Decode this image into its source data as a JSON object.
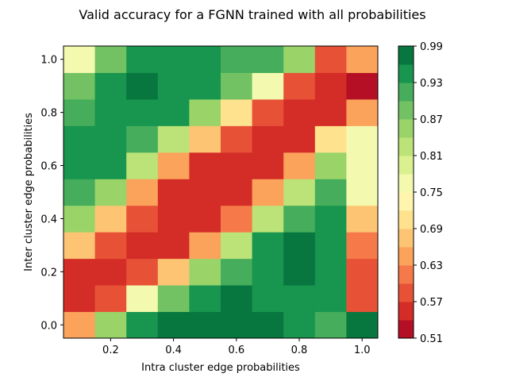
{
  "chart_data": {
    "type": "heatmap",
    "title": "Valid accuracy for a FGNN trained with all probabilities",
    "xlabel": "Intra cluster edge probabilities",
    "ylabel": "Inter cluster edge probabilities",
    "x_ticks": [
      "0.2",
      "0.4",
      "0.6",
      "0.8",
      "1.0"
    ],
    "y_ticks": [
      "0.0",
      "0.2",
      "0.4",
      "0.6",
      "0.8",
      "1.0"
    ],
    "x_tick_values": [
      0.2,
      0.4,
      0.6,
      0.8,
      1.0
    ],
    "y_tick_values": [
      0.0,
      0.2,
      0.4,
      0.6,
      0.8,
      1.0
    ],
    "x_centers": [
      0.1,
      0.2,
      0.3,
      0.4,
      0.5,
      0.6,
      0.7,
      0.8,
      0.9,
      1.0
    ],
    "y_centers": [
      0.0,
      0.1,
      0.2,
      0.3,
      0.4,
      0.5,
      0.6,
      0.7,
      0.8,
      0.9,
      1.0
    ],
    "xlim": [
      0.05,
      1.05
    ],
    "ylim": [
      -0.05,
      1.05
    ],
    "colorbar": {
      "colormap": "RdYlGn",
      "vmin": 0.51,
      "vmax": 0.99,
      "levels": 16,
      "ticks": [
        "0.51",
        "0.57",
        "0.63",
        "0.69",
        "0.75",
        "0.81",
        "0.87",
        "0.93",
        "0.99"
      ],
      "tick_values": [
        0.51,
        0.57,
        0.63,
        0.69,
        0.75,
        0.81,
        0.87,
        0.93,
        0.99
      ]
    },
    "values": [
      [
        0.65,
        0.85,
        0.94,
        0.98,
        0.98,
        0.98,
        0.98,
        0.94,
        0.91,
        0.98
      ],
      [
        0.55,
        0.58,
        0.76,
        0.87,
        0.94,
        0.98,
        0.94,
        0.94,
        0.94,
        0.58
      ],
      [
        0.55,
        0.55,
        0.58,
        0.69,
        0.85,
        0.91,
        0.94,
        0.98,
        0.94,
        0.58
      ],
      [
        0.69,
        0.58,
        0.55,
        0.55,
        0.65,
        0.82,
        0.94,
        0.98,
        0.94,
        0.61
      ],
      [
        0.85,
        0.69,
        0.58,
        0.55,
        0.55,
        0.61,
        0.82,
        0.91,
        0.94,
        0.69
      ],
      [
        0.91,
        0.85,
        0.65,
        0.55,
        0.55,
        0.55,
        0.65,
        0.82,
        0.91,
        0.76
      ],
      [
        0.94,
        0.94,
        0.82,
        0.65,
        0.55,
        0.55,
        0.55,
        0.65,
        0.85,
        0.76
      ],
      [
        0.94,
        0.94,
        0.91,
        0.82,
        0.69,
        0.58,
        0.55,
        0.55,
        0.72,
        0.76
      ],
      [
        0.91,
        0.94,
        0.94,
        0.94,
        0.85,
        0.72,
        0.58,
        0.55,
        0.55,
        0.65
      ],
      [
        0.87,
        0.94,
        0.98,
        0.94,
        0.94,
        0.87,
        0.76,
        0.58,
        0.55,
        0.51
      ],
      [
        0.76,
        0.87,
        0.94,
        0.94,
        0.94,
        0.91,
        0.91,
        0.85,
        0.58,
        0.65
      ]
    ]
  }
}
